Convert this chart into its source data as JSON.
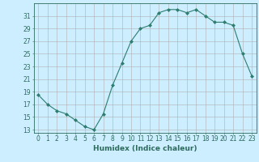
{
  "x": [
    0,
    1,
    2,
    3,
    4,
    5,
    6,
    7,
    8,
    9,
    10,
    11,
    12,
    13,
    14,
    15,
    16,
    17,
    18,
    19,
    20,
    21,
    22,
    23
  ],
  "y": [
    18.5,
    17.0,
    16.0,
    15.5,
    14.5,
    13.5,
    13.0,
    15.5,
    20.0,
    23.5,
    27.0,
    29.0,
    29.5,
    31.5,
    32.0,
    32.0,
    31.5,
    32.0,
    31.0,
    30.0,
    30.0,
    29.5,
    25.0,
    21.5
  ],
  "line_color": "#2e7d6e",
  "marker": "D",
  "markersize": 2.0,
  "linewidth": 0.8,
  "bg_color": "#cceeff",
  "grid_color": "#b0b0b0",
  "grid_color_minor": "#cccccc",
  "xlabel": "Humidex (Indice chaleur)",
  "ylabel_ticks": [
    13,
    15,
    17,
    19,
    21,
    23,
    25,
    27,
    29,
    31
  ],
  "ylim": [
    12.5,
    33.0
  ],
  "xlim": [
    -0.5,
    23.5
  ],
  "xlabel_fontsize": 6.5,
  "tick_fontsize": 5.5,
  "tick_color": "#2e6b5e"
}
